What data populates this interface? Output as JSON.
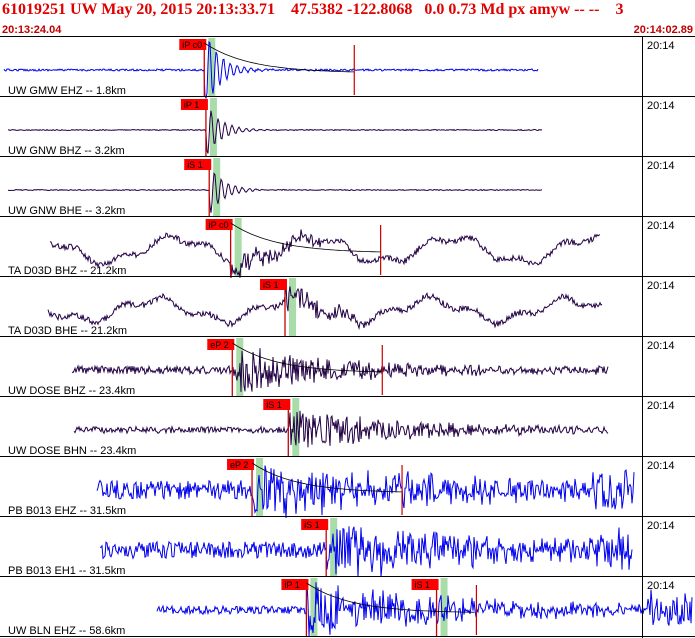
{
  "header": {
    "title": "61019251 UW May 20, 2015 20:13:33.71    47.5382 -122.8068   0.0 0.73 Md px amyw -- --    3",
    "start_time": "20:13:24.04",
    "end_time": "20:14:02.89"
  },
  "colors": {
    "title": "#e00000",
    "pick_box": "#ff0000",
    "pick_line": "#cc0000",
    "pick_window": "#a8dca8",
    "trace_blue": "#0000ee",
    "trace_dark": "#220044",
    "grid": "#000000"
  },
  "chart_data": {
    "type": "line",
    "x_unit": "seconds",
    "minute_tick_label": "20:14",
    "traces": [
      {
        "label": "UW GMW EHZ -- 1.8km",
        "color": "blue",
        "picks": [
          {
            "label": "iP c0",
            "t": 12.4
          }
        ]
      },
      {
        "label": "UW GNW BHZ -- 3.2km",
        "color": "dark",
        "picks": [
          {
            "label": "iP 1",
            "t": 12.5
          }
        ]
      },
      {
        "label": "UW GNW BHE -- 3.2km",
        "color": "dark",
        "picks": [
          {
            "label": "iS 1",
            "t": 12.7
          }
        ]
      },
      {
        "label": "TA D03D BHZ -- 21.2km",
        "color": "dark",
        "picks": [
          {
            "label": "iP c0",
            "t": 14.0
          }
        ]
      },
      {
        "label": "TA D03D BHE -- 21.2km",
        "color": "dark",
        "picks": [
          {
            "label": "iS 1",
            "t": 17.3
          }
        ]
      },
      {
        "label": "UW DOSE BHZ -- 23.4km",
        "color": "dark",
        "picks": [
          {
            "label": "eP 2",
            "t": 14.1
          }
        ]
      },
      {
        "label": "UW DOSE BHN -- 23.4km",
        "color": "dark",
        "picks": [
          {
            "label": "iS 1",
            "t": 17.5
          }
        ]
      },
      {
        "label": "PB B013 EHZ -- 31.5km",
        "color": "blue",
        "picks": [
          {
            "label": "eP 2",
            "t": 15.3
          }
        ]
      },
      {
        "label": "PB B013 EH1 -- 31.5km",
        "color": "blue",
        "picks": [
          {
            "label": "iS 1",
            "t": 19.8
          }
        ]
      },
      {
        "label": "UW BLN EHZ -- 58.6km",
        "color": "blue",
        "picks": [
          {
            "label": "iP 1",
            "t": 18.6
          },
          {
            "label": "iS 1",
            "t": 26.5
          }
        ]
      }
    ]
  }
}
